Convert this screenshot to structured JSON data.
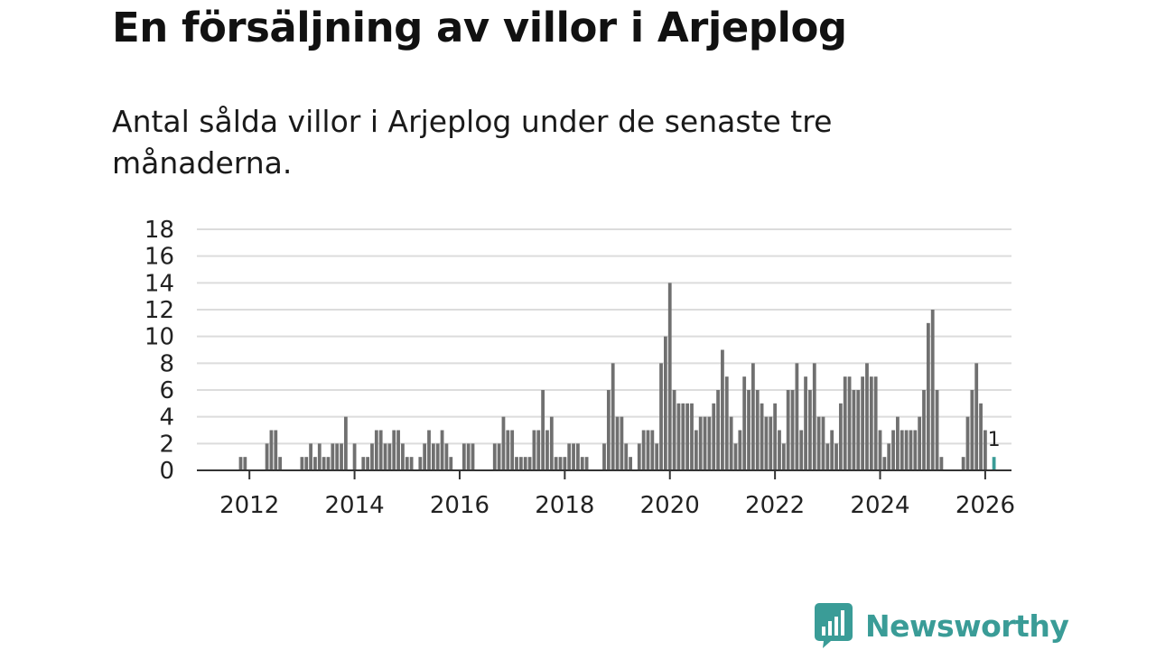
{
  "header": {
    "title": "En försäljning av villor i Arjeplog",
    "subtitle": "Antal sålda villor i Arjeplog under de senaste tre månaderna."
  },
  "logo": {
    "text": "Newsworthy",
    "icon": "bar-chart-bubble-icon",
    "color": "#3a9c97"
  },
  "chart_data": {
    "type": "bar",
    "title": "",
    "xlabel": "",
    "ylabel": "",
    "ylim": [
      0,
      18
    ],
    "yticks": [
      "0",
      "2",
      "4",
      "6",
      "8",
      "10",
      "12",
      "14",
      "16",
      "18"
    ],
    "xticks": [
      "2012",
      "2014",
      "2016",
      "2018",
      "2020",
      "2022",
      "2024",
      "2026"
    ],
    "xrange": [
      "2011-01",
      "2026-07"
    ],
    "grid": true,
    "bar_color": "#707070",
    "highlight_color": "#3a9c97",
    "highlight_label": "1",
    "series": [
      {
        "start": "2011-11",
        "frequency": "monthly",
        "values": [
          1,
          1,
          0,
          0,
          0,
          0,
          2,
          3,
          3,
          1,
          0,
          0,
          0,
          0,
          1,
          1,
          2,
          1,
          2,
          1,
          1,
          2,
          2,
          2,
          4,
          0,
          2,
          0,
          1,
          1,
          2,
          3,
          3,
          2,
          2,
          3,
          3,
          2,
          1,
          1,
          0,
          1,
          2,
          3,
          2,
          2,
          3,
          2,
          1,
          0,
          0,
          2,
          2,
          2,
          0,
          0,
          0,
          0,
          2,
          2,
          4,
          3,
          3,
          1,
          1,
          1,
          1,
          3,
          3,
          6,
          3,
          4,
          1,
          1,
          1,
          2,
          2,
          2,
          1,
          1,
          0,
          0,
          0,
          2,
          6,
          8,
          4,
          4,
          2,
          1,
          0,
          2,
          3,
          3,
          3,
          2,
          8,
          10,
          14,
          6,
          5,
          5,
          5,
          5,
          3,
          4,
          4,
          4,
          5,
          6,
          9,
          7,
          4,
          2,
          3,
          7,
          6,
          8,
          6,
          5,
          4,
          4,
          5,
          3,
          2,
          6,
          6,
          8,
          3,
          7,
          6,
          8,
          4,
          4,
          2,
          3,
          2,
          5,
          7,
          7,
          6,
          6,
          7,
          8,
          7,
          7,
          3,
          1,
          2,
          3,
          4,
          3,
          3,
          3,
          3,
          4,
          6,
          11,
          12,
          6,
          1,
          0,
          0,
          0,
          0,
          1,
          4,
          6,
          8,
          5,
          3,
          0,
          1
        ]
      }
    ]
  }
}
